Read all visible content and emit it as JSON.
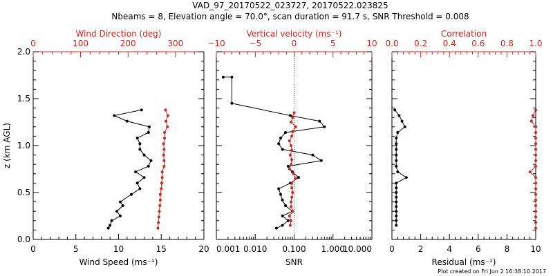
{
  "figure": {
    "title_line1": "VAD_97_20170522_023727, 20170522.023825",
    "title_line2": "Nbeams = 8, Elevation angle = 70.0°, scan duration = 91.7 s, SNR Threshold = 0.008",
    "footer": "Plot created on Fri Jun  2 16:38:10 2017"
  },
  "colors": {
    "black": "#000000",
    "red": "#c8281e"
  },
  "chart_data": [
    {
      "type": "line",
      "ylabel": "z (km AGL)",
      "ylim": [
        0,
        2
      ],
      "yticks": [
        "0.0",
        "0.5",
        "1.0",
        "1.5",
        "2.0"
      ],
      "xlabel": "Wind Speed (ms⁻¹)",
      "xlim": [
        0,
        20
      ],
      "xticks": [
        "0",
        "5",
        "10",
        "15",
        "20"
      ],
      "x2label": "Wind Direction (deg)",
      "x2lim": [
        0,
        360
      ],
      "x2ticks": [
        "0",
        "100",
        "200",
        "300"
      ],
      "series": [
        {
          "color": "#000000",
          "axis": "bottom",
          "points": [
            [
              8.8,
              0.12
            ],
            [
              9.0,
              0.15
            ],
            [
              9.2,
              0.2
            ],
            [
              10.2,
              0.25
            ],
            [
              9.8,
              0.3
            ],
            [
              10.5,
              0.36
            ],
            [
              10.2,
              0.4
            ],
            [
              11.5,
              0.48
            ],
            [
              12.5,
              0.54
            ],
            [
              12.2,
              0.6
            ],
            [
              13.0,
              0.66
            ],
            [
              12.0,
              0.72
            ],
            [
              13.5,
              0.78
            ],
            [
              13.8,
              0.84
            ],
            [
              13.0,
              0.9
            ],
            [
              12.5,
              0.96
            ],
            [
              12.5,
              1.02
            ],
            [
              12.2,
              1.08
            ],
            [
              13.5,
              1.14
            ],
            [
              13.6,
              1.2
            ],
            [
              11.0,
              1.26
            ],
            [
              9.5,
              1.32
            ],
            [
              12.7,
              1.38
            ]
          ]
        },
        {
          "color": "#c8281e",
          "axis": "top",
          "points": [
            [
              263,
              0.12
            ],
            [
              264,
              0.18
            ],
            [
              265,
              0.24
            ],
            [
              266,
              0.3
            ],
            [
              267,
              0.36
            ],
            [
              268,
              0.42
            ],
            [
              268,
              0.48
            ],
            [
              270,
              0.54
            ],
            [
              271,
              0.6
            ],
            [
              272,
              0.66
            ],
            [
              272,
              0.72
            ],
            [
              276,
              0.78
            ],
            [
              276,
              0.84
            ],
            [
              275,
              0.9
            ],
            [
              276,
              0.96
            ],
            [
              275,
              1.02
            ],
            [
              277,
              1.08
            ],
            [
              277,
              1.14
            ],
            [
              283,
              1.2
            ],
            [
              280,
              1.26
            ],
            [
              284,
              1.32
            ],
            [
              279,
              1.38
            ]
          ]
        }
      ]
    },
    {
      "type": "line",
      "xlabel": "SNR",
      "xscale": "log",
      "xlim": [
        0.001,
        10
      ],
      "xticks": [
        "0.001",
        "0.010",
        "0.100",
        "1.000",
        "10.000"
      ],
      "x2label": "Vertical velocity (ms⁻¹)",
      "x2lim": [
        -10,
        10
      ],
      "x2ticks": [
        "−10",
        "−5",
        "0",
        "5",
        "10"
      ],
      "x2_reference_line": 0,
      "series": [
        {
          "color": "#000000",
          "axis": "bottom",
          "points": [
            [
              0.035,
              0.12
            ],
            [
              0.05,
              0.15
            ],
            [
              0.07,
              0.2
            ],
            [
              0.05,
              0.25
            ],
            [
              0.09,
              0.3
            ],
            [
              0.06,
              0.36
            ],
            [
              0.05,
              0.42
            ],
            [
              0.045,
              0.48
            ],
            [
              0.04,
              0.54
            ],
            [
              0.08,
              0.6
            ],
            [
              0.13,
              0.66
            ],
            [
              0.09,
              0.72
            ],
            [
              0.07,
              0.78
            ],
            [
              0.5,
              0.84
            ],
            [
              0.3,
              0.9
            ],
            [
              0.05,
              0.96
            ],
            [
              0.04,
              1.02
            ],
            [
              0.045,
              1.08
            ],
            [
              0.06,
              1.14
            ],
            [
              0.6,
              1.2
            ],
            [
              0.45,
              1.26
            ],
            [
              0.08,
              1.32
            ],
            [
              0.0025,
              1.45
            ],
            [
              0.0025,
              1.73
            ],
            [
              0.0015,
              1.73
            ]
          ]
        },
        {
          "color": "#c8281e",
          "axis": "top",
          "points": [
            [
              -0.5,
              0.15
            ],
            [
              -0.4,
              0.2
            ],
            [
              -0.6,
              0.25
            ],
            [
              -0.2,
              0.3
            ],
            [
              -0.4,
              0.35
            ],
            [
              -0.4,
              0.4
            ],
            [
              -0.3,
              0.45
            ],
            [
              -0.2,
              0.5
            ],
            [
              -0.3,
              0.55
            ],
            [
              -0.3,
              0.6
            ],
            [
              0.2,
              0.65
            ],
            [
              -0.1,
              0.7
            ],
            [
              -0.6,
              0.75
            ],
            [
              -0.4,
              0.8
            ],
            [
              -0.3,
              0.85
            ],
            [
              -0.5,
              0.9
            ],
            [
              -0.3,
              0.95
            ],
            [
              -0.4,
              1.0
            ],
            [
              -0.6,
              1.05
            ],
            [
              -0.3,
              1.1
            ],
            [
              -0.2,
              1.15
            ],
            [
              0.2,
              1.2
            ],
            [
              -0.4,
              1.25
            ],
            [
              -0.2,
              1.3
            ],
            [
              0.0,
              1.35
            ]
          ]
        }
      ]
    },
    {
      "type": "line",
      "xlabel": "Residual (ms⁻¹)",
      "xlim": [
        0,
        10
      ],
      "xticks": [
        "0",
        "2",
        "4",
        "6",
        "8",
        "10"
      ],
      "x2label": "Correlation",
      "x2lim": [
        0,
        1
      ],
      "x2ticks": [
        "0.0",
        "0.2",
        "0.4",
        "0.6",
        "0.8",
        "1.0"
      ],
      "series": [
        {
          "color": "#000000",
          "axis": "bottom",
          "points": [
            [
              0.3,
              0.15
            ],
            [
              0.3,
              0.2
            ],
            [
              0.3,
              0.25
            ],
            [
              0.3,
              0.3
            ],
            [
              0.3,
              0.35
            ],
            [
              0.3,
              0.4
            ],
            [
              0.3,
              0.45
            ],
            [
              0.3,
              0.5
            ],
            [
              0.3,
              0.55
            ],
            [
              0.3,
              0.6
            ],
            [
              1.0,
              0.66
            ],
            [
              0.4,
              0.72
            ],
            [
              0.3,
              0.78
            ],
            [
              0.3,
              0.84
            ],
            [
              0.3,
              0.9
            ],
            [
              0.3,
              0.96
            ],
            [
              0.3,
              1.02
            ],
            [
              0.3,
              1.08
            ],
            [
              0.4,
              1.14
            ],
            [
              0.9,
              1.2
            ],
            [
              0.7,
              1.26
            ],
            [
              0.5,
              1.32
            ],
            [
              0.2,
              1.38
            ]
          ]
        },
        {
          "color": "#c8281e",
          "axis": "top",
          "points": [
            [
              1.0,
              0.12
            ],
            [
              1.0,
              0.18
            ],
            [
              1.0,
              0.24
            ],
            [
              1.0,
              0.3
            ],
            [
              1.0,
              0.36
            ],
            [
              1.0,
              0.42
            ],
            [
              1.0,
              0.48
            ],
            [
              1.0,
              0.54
            ],
            [
              1.0,
              0.6
            ],
            [
              1.0,
              0.66
            ],
            [
              0.96,
              0.72
            ],
            [
              1.0,
              0.78
            ],
            [
              1.0,
              0.84
            ],
            [
              1.0,
              0.9
            ],
            [
              1.0,
              0.96
            ],
            [
              1.0,
              1.02
            ],
            [
              1.0,
              1.08
            ],
            [
              1.0,
              1.14
            ],
            [
              1.0,
              1.2
            ],
            [
              0.97,
              1.26
            ],
            [
              0.98,
              1.32
            ],
            [
              1.0,
              1.38
            ]
          ]
        }
      ]
    }
  ]
}
